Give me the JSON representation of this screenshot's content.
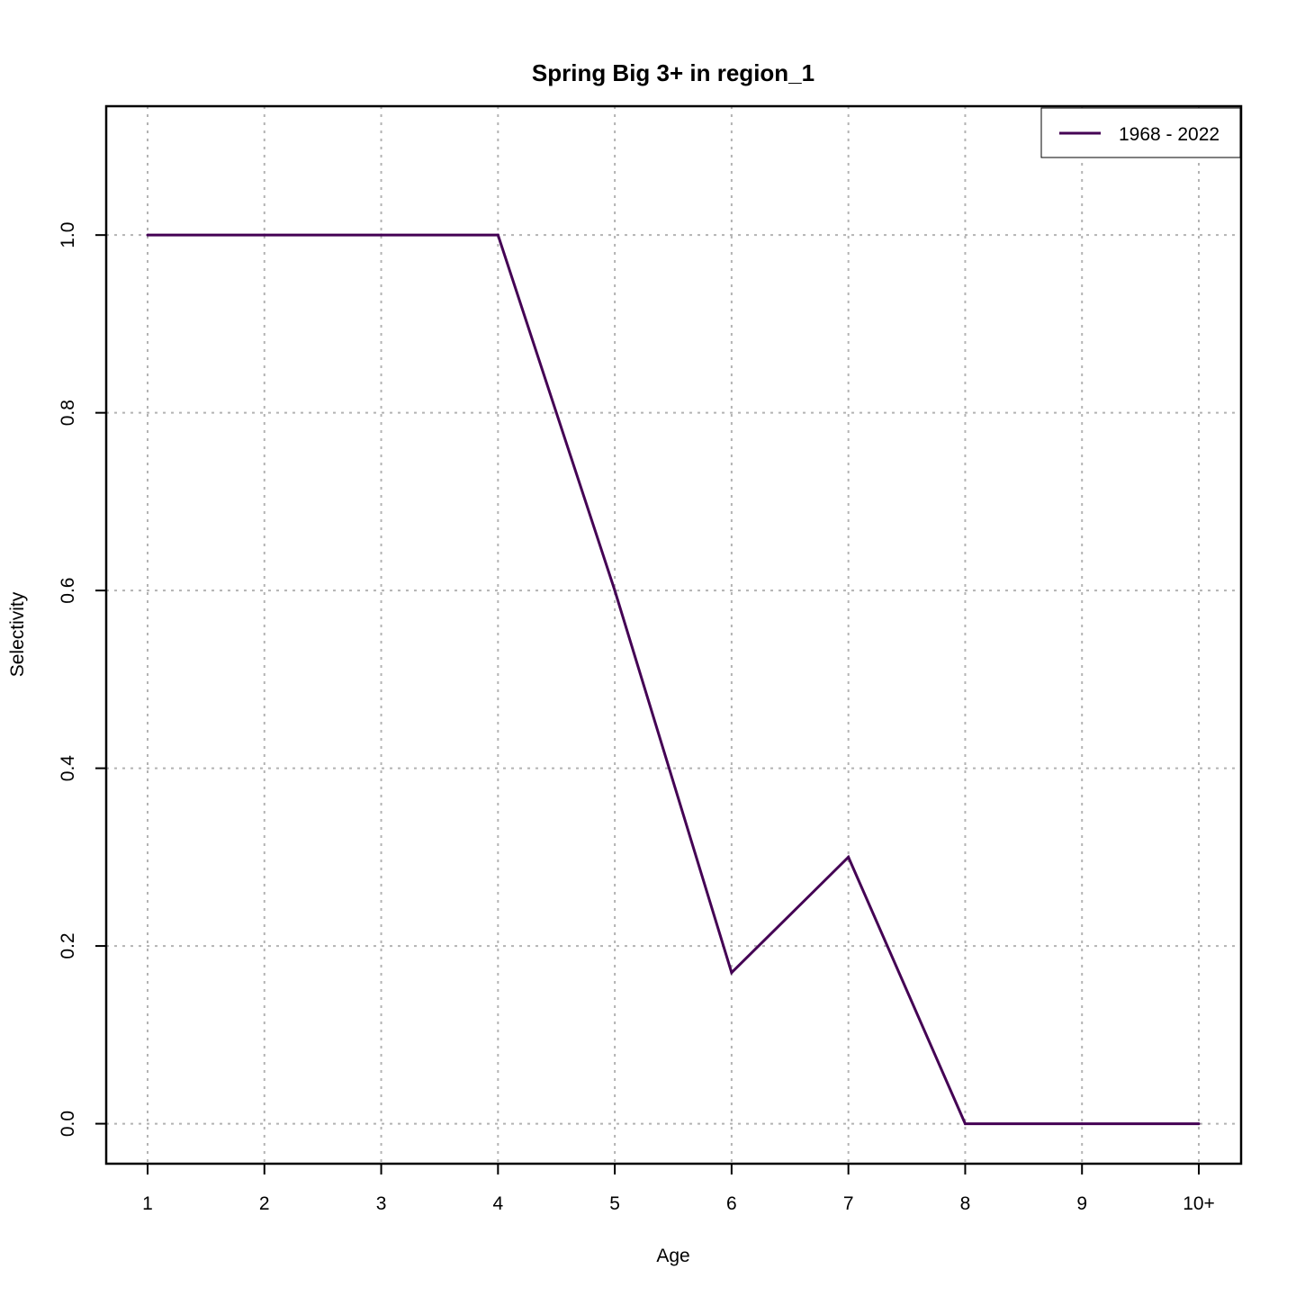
{
  "chart_data": {
    "type": "line",
    "title": "Spring Big 3+ in region_1",
    "xlabel": "Age",
    "ylabel": "Selectivity",
    "categories": [
      "1",
      "2",
      "3",
      "4",
      "5",
      "6",
      "7",
      "8",
      "9",
      "10+"
    ],
    "x": [
      1,
      2,
      3,
      4,
      5,
      6,
      7,
      8,
      9,
      10
    ],
    "ylim": [
      -0.045,
      1.145
    ],
    "yticks": [
      "0.0",
      "0.2",
      "0.4",
      "0.6",
      "0.8",
      "1.0"
    ],
    "ytick_values": [
      0,
      0.2,
      0.4,
      0.6,
      0.8,
      1.0
    ],
    "grid": true,
    "legend_position": "top-right",
    "series": [
      {
        "name": "1968 - 2022",
        "color": "#440154",
        "values": [
          1.0,
          1.0,
          1.0,
          1.0,
          0.6,
          0.17,
          0.3,
          0.0,
          0.0,
          0.0
        ]
      }
    ]
  }
}
